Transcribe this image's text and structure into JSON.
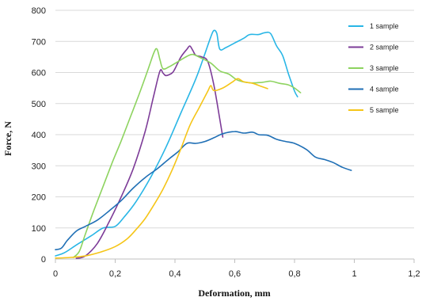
{
  "chart_data": {
    "type": "line",
    "title": "",
    "xlabel": "Deformation, mm",
    "ylabel": "Force, N",
    "xlim": [
      0,
      1.2
    ],
    "ylim": [
      0,
      800
    ],
    "x_ticks": [
      "0",
      "0,2",
      "0,4",
      "0,6",
      "0,8",
      "1",
      "1,2"
    ],
    "y_ticks": [
      "0",
      "100",
      "200",
      "300",
      "400",
      "500",
      "600",
      "700",
      "800"
    ],
    "grid": "horizontal",
    "legend_position": "top-right",
    "series": [
      {
        "name": "1 sample",
        "color": "#29b6e6",
        "points": [
          [
            0,
            10
          ],
          [
            0.03,
            20
          ],
          [
            0.07,
            45
          ],
          [
            0.12,
            75
          ],
          [
            0.16,
            100
          ],
          [
            0.2,
            105
          ],
          [
            0.23,
            135
          ],
          [
            0.27,
            185
          ],
          [
            0.32,
            265
          ],
          [
            0.37,
            360
          ],
          [
            0.42,
            470
          ],
          [
            0.47,
            580
          ],
          [
            0.5,
            660
          ],
          [
            0.52,
            715
          ],
          [
            0.53,
            735
          ],
          [
            0.54,
            725
          ],
          [
            0.55,
            675
          ],
          [
            0.57,
            680
          ],
          [
            0.6,
            695
          ],
          [
            0.63,
            710
          ],
          [
            0.65,
            722
          ],
          [
            0.68,
            722
          ],
          [
            0.7,
            728
          ],
          [
            0.72,
            725
          ],
          [
            0.74,
            685
          ],
          [
            0.76,
            655
          ],
          [
            0.78,
            595
          ],
          [
            0.8,
            540
          ],
          [
            0.81,
            522
          ]
        ]
      },
      {
        "name": "2 sample",
        "color": "#7d3c98",
        "points": [
          [
            0.07,
            2
          ],
          [
            0.1,
            10
          ],
          [
            0.14,
            50
          ],
          [
            0.18,
            120
          ],
          [
            0.22,
            200
          ],
          [
            0.26,
            290
          ],
          [
            0.3,
            410
          ],
          [
            0.33,
            530
          ],
          [
            0.35,
            605
          ],
          [
            0.36,
            598
          ],
          [
            0.37,
            590
          ],
          [
            0.39,
            598
          ],
          [
            0.4,
            612
          ],
          [
            0.42,
            650
          ],
          [
            0.44,
            675
          ],
          [
            0.45,
            685
          ],
          [
            0.46,
            670
          ],
          [
            0.47,
            655
          ],
          [
            0.49,
            650
          ],
          [
            0.51,
            635
          ],
          [
            0.53,
            560
          ],
          [
            0.55,
            450
          ],
          [
            0.56,
            392
          ]
        ]
      },
      {
        "name": "3 sample",
        "color": "#8dd35f",
        "points": [
          [
            0.06,
            5
          ],
          [
            0.08,
            25
          ],
          [
            0.1,
            80
          ],
          [
            0.13,
            160
          ],
          [
            0.16,
            235
          ],
          [
            0.19,
            310
          ],
          [
            0.22,
            380
          ],
          [
            0.25,
            455
          ],
          [
            0.28,
            530
          ],
          [
            0.31,
            610
          ],
          [
            0.33,
            665
          ],
          [
            0.34,
            675
          ],
          [
            0.35,
            640
          ],
          [
            0.36,
            612
          ],
          [
            0.38,
            618
          ],
          [
            0.41,
            635
          ],
          [
            0.44,
            652
          ],
          [
            0.46,
            658
          ],
          [
            0.49,
            645
          ],
          [
            0.52,
            630
          ],
          [
            0.55,
            605
          ],
          [
            0.58,
            595
          ],
          [
            0.61,
            575
          ],
          [
            0.65,
            567
          ],
          [
            0.69,
            568
          ],
          [
            0.72,
            572
          ],
          [
            0.75,
            565
          ],
          [
            0.78,
            560
          ],
          [
            0.8,
            550
          ],
          [
            0.82,
            535
          ]
        ]
      },
      {
        "name": "4 sample",
        "color": "#1f6fb5",
        "points": [
          [
            0,
            30
          ],
          [
            0.02,
            35
          ],
          [
            0.04,
            60
          ],
          [
            0.07,
            90
          ],
          [
            0.1,
            105
          ],
          [
            0.14,
            125
          ],
          [
            0.18,
            155
          ],
          [
            0.22,
            188
          ],
          [
            0.26,
            228
          ],
          [
            0.3,
            262
          ],
          [
            0.34,
            290
          ],
          [
            0.38,
            322
          ],
          [
            0.41,
            345
          ],
          [
            0.44,
            372
          ],
          [
            0.47,
            372
          ],
          [
            0.5,
            378
          ],
          [
            0.53,
            390
          ],
          [
            0.56,
            403
          ],
          [
            0.6,
            410
          ],
          [
            0.63,
            405
          ],
          [
            0.66,
            408
          ],
          [
            0.68,
            400
          ],
          [
            0.71,
            398
          ],
          [
            0.74,
            385
          ],
          [
            0.77,
            378
          ],
          [
            0.8,
            372
          ],
          [
            0.84,
            352
          ],
          [
            0.87,
            328
          ],
          [
            0.9,
            320
          ],
          [
            0.93,
            310
          ],
          [
            0.96,
            295
          ],
          [
            0.99,
            285
          ]
        ]
      },
      {
        "name": "5 sample",
        "color": "#f5c518",
        "points": [
          [
            0,
            3
          ],
          [
            0.05,
            5
          ],
          [
            0.1,
            10
          ],
          [
            0.15,
            22
          ],
          [
            0.2,
            40
          ],
          [
            0.24,
            65
          ],
          [
            0.27,
            95
          ],
          [
            0.3,
            130
          ],
          [
            0.33,
            175
          ],
          [
            0.36,
            225
          ],
          [
            0.39,
            285
          ],
          [
            0.42,
            355
          ],
          [
            0.45,
            430
          ],
          [
            0.48,
            485
          ],
          [
            0.51,
            540
          ],
          [
            0.52,
            558
          ],
          [
            0.53,
            542
          ],
          [
            0.56,
            550
          ],
          [
            0.59,
            568
          ],
          [
            0.61,
            580
          ],
          [
            0.63,
            570
          ],
          [
            0.66,
            565
          ],
          [
            0.69,
            555
          ],
          [
            0.71,
            548
          ]
        ]
      }
    ]
  }
}
